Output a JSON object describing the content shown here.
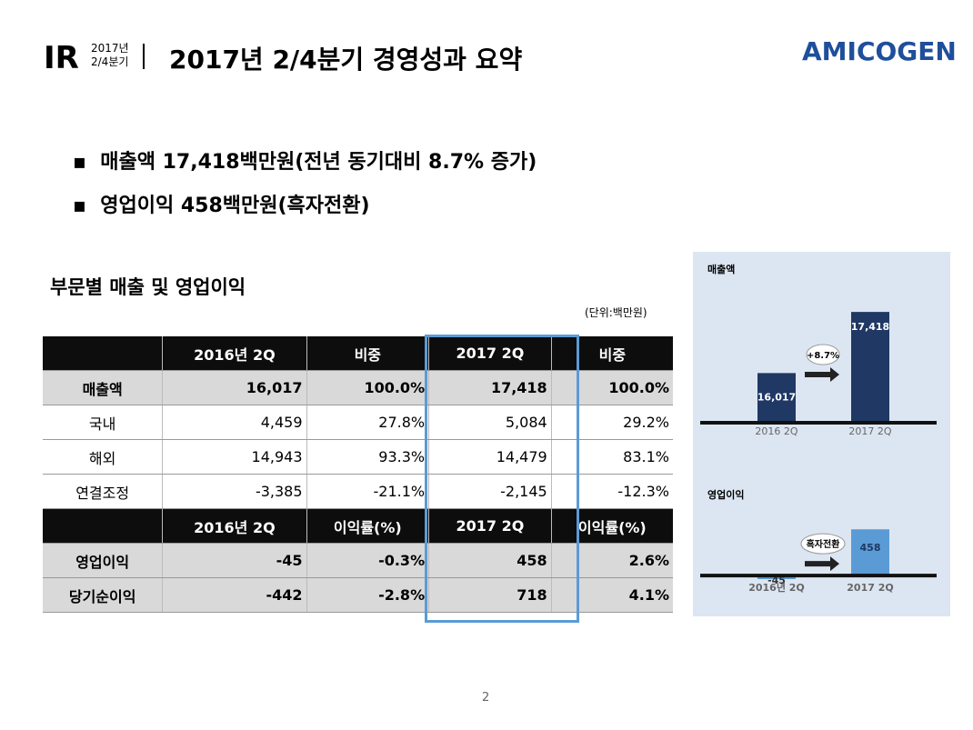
{
  "header": {
    "ir": "IR",
    "period_line1": "2017년",
    "period_line2": "2/4분기",
    "title": "2017년 2/4분기 경영성과 요약",
    "logo": "AMICOGEN"
  },
  "bullets": [
    "매출액 17,418백만원(전년 동기대비 8.7% 증가)",
    "영업이익 458백만원(흑자전환)"
  ],
  "section_title": "부문별 매출 및 영업이익",
  "unit": "(단위:백만원)",
  "table": {
    "columns": [
      "2016년 2Q",
      "비중",
      "2017 2Q",
      "비중"
    ],
    "rows": [
      [
        "매출액",
        "16,017",
        "100.0%",
        "17,418",
        "100.0%"
      ],
      [
        "국내",
        "4,459",
        "27.8%",
        "5,084",
        "29.2%"
      ],
      [
        "해외",
        "14,943",
        "93.3%",
        "14,479",
        "83.1%"
      ],
      [
        "연결조정",
        "-3,385",
        "-21.1%",
        "-2,145",
        "-12.3%"
      ]
    ],
    "columns2": [
      "2016년 2Q",
      "이익률(%)",
      "2017 2Q",
      "이익률(%)"
    ],
    "rows2": [
      [
        "영업이익",
        "-45",
        "-0.3%",
        "458",
        "2.6%"
      ],
      [
        "당기순이익",
        "-442",
        "-2.8%",
        "718",
        "4.1%"
      ]
    ]
  },
  "charts": [
    {
      "type": "bar",
      "title": "매출액",
      "categories": [
        "2016 2Q",
        "2017 2Q"
      ],
      "values": [
        16017,
        17418
      ],
      "value_labels": [
        "16,017",
        "17,418"
      ],
      "annotation": "+8.7%",
      "color": "#1f3864",
      "ylim": [
        14900,
        17900
      ]
    },
    {
      "type": "bar",
      "title": "영업이익",
      "categories": [
        "2016년 2Q",
        "2017 2Q"
      ],
      "values": [
        -45,
        458
      ],
      "annotation": "흑자전환",
      "color": "#5b9bd5",
      "ylim": [
        -100,
        800
      ]
    }
  ],
  "page_number": "2"
}
